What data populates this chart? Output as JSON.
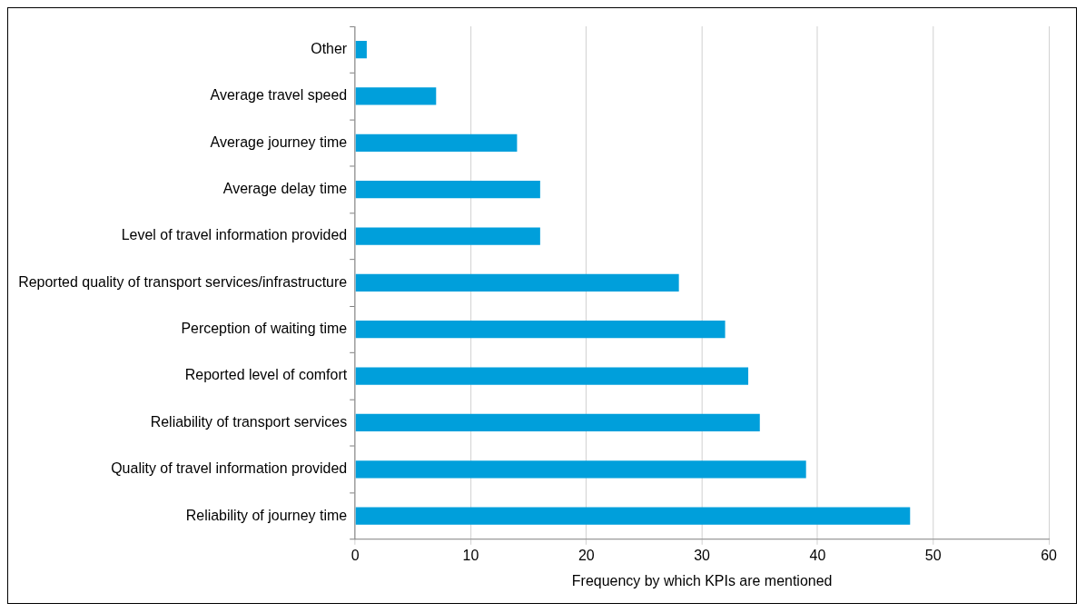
{
  "chart_data": {
    "type": "bar",
    "orientation": "horizontal",
    "xlabel": "Frequency by which KPIs are mentioned",
    "categories": [
      "Other",
      "Average travel speed",
      "Average journey time",
      "Average delay time",
      "Level of travel information provided",
      "Reported quality of transport services/infrastructure",
      "Perception of waiting time",
      "Reported level of comfort",
      "Reliability of transport services",
      "Quality of travel information provided",
      "Reliability of journey time"
    ],
    "values": [
      1,
      7,
      14,
      16,
      16,
      28,
      32,
      34,
      35,
      39,
      48
    ],
    "color": "#009fdb",
    "xlim": [
      0,
      60
    ],
    "xticks": [
      0,
      10,
      20,
      30,
      40,
      50,
      60
    ],
    "grid": "x",
    "legend": false
  }
}
